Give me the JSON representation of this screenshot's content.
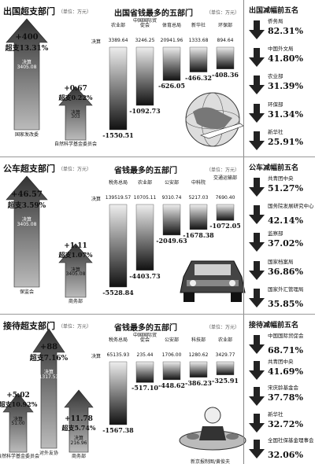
{
  "sections": [
    {
      "title": "出国超支部门",
      "unit": "（单位：万元）",
      "big": {
        "value": "+400",
        "over": "超支13.31%",
        "jues": "决算",
        "amount": "3405.08",
        "name": "国家发改委"
      },
      "small": {
        "value": "+0.67",
        "over": "超支0.22%",
        "jues": "决算",
        "amount": "303",
        "name": "自然科学基金委员会"
      },
      "mid_title": "出国省钱最多的五部门",
      "mid_unit": "（单位：万元）",
      "jues_label": "决算",
      "bars": [
        {
          "name": "农业部",
          "num": "3389.64",
          "neg": "-1550.51"
        },
        {
          "name": "中国国际贸促会",
          "num": "3246.25",
          "neg": "-1092.73"
        },
        {
          "name": "体育总局",
          "num": "20941.96",
          "neg": "-626.05"
        },
        {
          "name": "新华社",
          "num": "1333.68",
          "neg": "-466.32"
        },
        {
          "name": "环保部",
          "num": "894.64",
          "neg": "-408.36"
        }
      ],
      "right_title": "出国减幅前五名",
      "right": [
        {
          "name": "侨务局",
          "pct": "82.31%"
        },
        {
          "name": "中国外文局",
          "pct": "41.80%"
        },
        {
          "name": "农业部",
          "pct": "31.39%"
        },
        {
          "name": "环保部",
          "pct": "31.34%"
        },
        {
          "name": "新华社",
          "pct": "25.91%"
        }
      ]
    },
    {
      "title": "公车超支部门",
      "unit": "（单位：万元）",
      "big": {
        "value": "+46.57",
        "over": "超支3.59%",
        "jues": "决算",
        "amount": "3405.08",
        "name": "保监会"
      },
      "small": {
        "value": "+1.11",
        "over": "超支1.07%",
        "jues": "决算",
        "amount": "3405.08",
        "name": "商务部"
      },
      "mid_title": "省钱最多的五部门",
      "mid_unit": "（单位：万元）",
      "jues_label": "决算",
      "bars": [
        {
          "name": "税务总局",
          "num": "139519.57",
          "neg": "-5528.84"
        },
        {
          "name": "农业部",
          "num": "10705.11",
          "neg": "-4403.73"
        },
        {
          "name": "公安部",
          "num": "9310.74",
          "neg": "-2049.63"
        },
        {
          "name": "中科院",
          "num": "5217.03",
          "neg": "-1678.38"
        },
        {
          "name": "交通运输部",
          "num": "7690.40",
          "neg": "-1072.05"
        }
      ],
      "right_title": "公车减幅前五名",
      "right": [
        {
          "name": "共青团中央",
          "pct": "51.27%"
        },
        {
          "name": "国务院发展研究中心",
          "pct": "42.14%"
        },
        {
          "name": "监察部",
          "pct": "37.02%"
        },
        {
          "name": "国家档案局",
          "pct": "36.86%"
        },
        {
          "name": "国家外汇管理局",
          "pct": "35.85%"
        }
      ]
    },
    {
      "title": "接待超支部门",
      "unit": "（单位：万元）",
      "big": {
        "value": "+88",
        "over": "超支7.16%",
        "jues": "决算",
        "amount": "1317.53",
        "name": "对外友协"
      },
      "small": {
        "value": "+5.02",
        "over": "超支10.92%",
        "jues": "决算",
        "amount": "51.00",
        "name": "自然科学基金委员会"
      },
      "small2": {
        "value": "+11.78",
        "over": "超支5.74%",
        "jues": "决算",
        "amount": "216.96",
        "name": "商务部"
      },
      "mid_title": "省钱最多的五部门",
      "mid_unit": "（单位：万元）",
      "jues_label": "决算",
      "bars": [
        {
          "name": "税务总局",
          "num": "65135.93",
          "neg": "-1567.38"
        },
        {
          "name": "中国国际贸促会",
          "num": "235.44",
          "neg": "-517.10"
        },
        {
          "name": "公安部",
          "num": "1706.00",
          "neg": "-448.62"
        },
        {
          "name": "科技部",
          "num": "1280.62",
          "neg": "-386.23"
        },
        {
          "name": "农业部",
          "num": "3429.77",
          "neg": "-325.91"
        }
      ],
      "right_title": "接待减幅前五名",
      "right": [
        {
          "name": "中国国际贸促会",
          "pct": "68.71%"
        },
        {
          "name": "共青团中央",
          "pct": "41.69%"
        },
        {
          "name": "宋庆龄基金会",
          "pct": "37.78%"
        },
        {
          "name": "新华社",
          "pct": "32.72%"
        },
        {
          "name": "全国社保基金理事会",
          "pct": "32.06%"
        }
      ],
      "credit": "新京报制图/黄俊夫"
    }
  ]
}
